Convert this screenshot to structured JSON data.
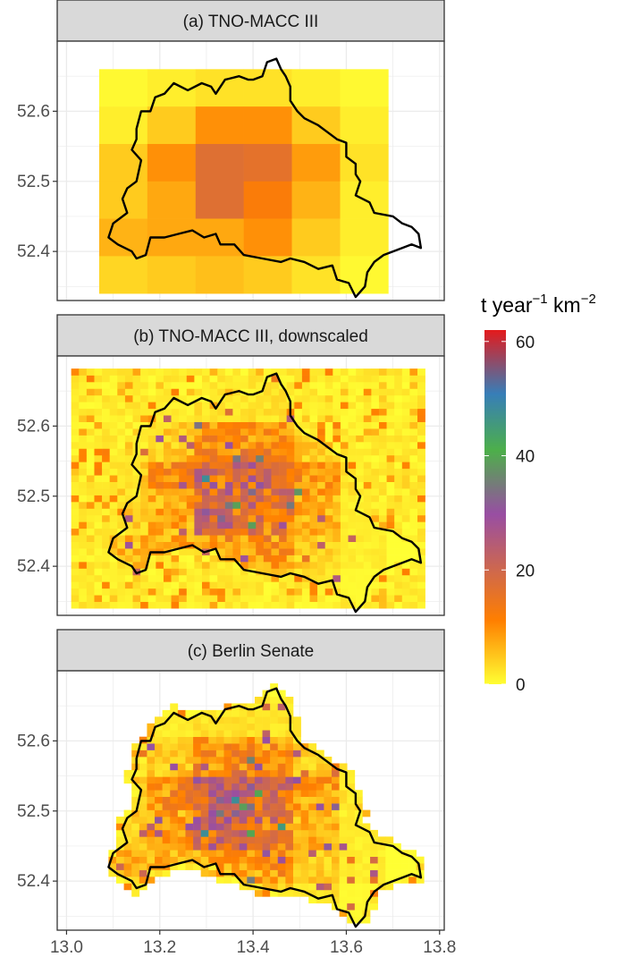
{
  "chart_data": {
    "type": "heatmap",
    "facets": [
      {
        "id": "a",
        "title": "(a) TNO-MACC III",
        "resolution": "coarse",
        "extent": {
          "lon": [
            13.07,
            13.69
          ],
          "lat": [
            52.34,
            52.66
          ]
        }
      },
      {
        "id": "b",
        "title": "(b) TNO-MACC III, downscaled",
        "resolution": "fine",
        "extent": {
          "lon": [
            13.01,
            13.76
          ],
          "lat": [
            52.34,
            52.675
          ]
        }
      },
      {
        "id": "c",
        "title": "(c) Berlin Senate",
        "resolution": "fine-clipped",
        "extent": {
          "lon": [
            13.09,
            13.76
          ],
          "lat": [
            52.34,
            52.68
          ]
        }
      }
    ],
    "x": {
      "ticks": [
        13.0,
        13.2,
        13.4,
        13.6,
        13.8
      ],
      "labels": [
        "13.0",
        "13.2",
        "13.4",
        "13.6",
        "13.8"
      ],
      "range": [
        12.98,
        13.81
      ]
    },
    "y": {
      "ticks": [
        52.4,
        52.5,
        52.6
      ],
      "labels": [
        "52.4",
        "52.5",
        "52.6"
      ],
      "range": [
        52.33,
        52.7
      ]
    },
    "coarse_grid": {
      "lon_edges": [
        13.07,
        13.1733,
        13.2767,
        13.38,
        13.4833,
        13.5867,
        13.69
      ],
      "lat_edges": [
        52.34,
        52.3933,
        52.4467,
        52.5,
        52.5533,
        52.6067,
        52.66
      ],
      "values_top_to_bottom": [
        [
          0.5,
          1.5,
          2.5,
          2.5,
          1.5,
          0.5
        ],
        [
          1.5,
          4.5,
          9.5,
          9.5,
          4.5,
          1.5
        ],
        [
          4.5,
          9.5,
          17,
          16,
          8.5,
          2.5
        ],
        [
          4.5,
          7.5,
          17,
          12,
          6.5,
          1.5
        ],
        [
          6.5,
          7.5,
          7.5,
          9.5,
          4.5,
          1.5
        ],
        [
          3.5,
          4.5,
          5.5,
          4.5,
          2.5,
          0.5
        ]
      ]
    },
    "legend": {
      "title": "t year",
      "title_sup1": "−1",
      "title_unit": " km",
      "title_sup2": "−2",
      "ticks": [
        0,
        20,
        40,
        60
      ],
      "tick_labels": [
        "0",
        "20",
        "40",
        "60"
      ],
      "limits": [
        0,
        62
      ]
    },
    "colors": {
      "strip_fill": "#d9d9d9",
      "grid": "#ebebeb",
      "scale": [
        "#ffff33",
        "#ff7f00",
        "#984ea3",
        "#4daf4a",
        "#377eb8",
        "#e41a1c"
      ]
    },
    "boundary_lonlat": [
      [
        13.15,
        52.39
      ],
      [
        13.17,
        52.395
      ],
      [
        13.18,
        52.42
      ],
      [
        13.21,
        52.42
      ],
      [
        13.24,
        52.425
      ],
      [
        13.27,
        52.43
      ],
      [
        13.295,
        52.42
      ],
      [
        13.32,
        52.425
      ],
      [
        13.33,
        52.41
      ],
      [
        13.36,
        52.41
      ],
      [
        13.38,
        52.395
      ],
      [
        13.42,
        52.39
      ],
      [
        13.46,
        52.385
      ],
      [
        13.48,
        52.39
      ],
      [
        13.51,
        52.385
      ],
      [
        13.54,
        52.375
      ],
      [
        13.57,
        52.38
      ],
      [
        13.58,
        52.36
      ],
      [
        13.605,
        52.355
      ],
      [
        13.62,
        52.335
      ],
      [
        13.64,
        52.35
      ],
      [
        13.645,
        52.37
      ],
      [
        13.66,
        52.385
      ],
      [
        13.68,
        52.395
      ],
      [
        13.72,
        52.405
      ],
      [
        13.74,
        52.41
      ],
      [
        13.76,
        52.405
      ],
      [
        13.755,
        52.425
      ],
      [
        13.74,
        52.435
      ],
      [
        13.72,
        52.44
      ],
      [
        13.7,
        52.45
      ],
      [
        13.66,
        52.455
      ],
      [
        13.65,
        52.47
      ],
      [
        13.62,
        52.48
      ],
      [
        13.63,
        52.5
      ],
      [
        13.62,
        52.51
      ],
      [
        13.62,
        52.525
      ],
      [
        13.6,
        52.535
      ],
      [
        13.6,
        52.555
      ],
      [
        13.58,
        52.56
      ],
      [
        13.56,
        52.57
      ],
      [
        13.54,
        52.58
      ],
      [
        13.51,
        52.59
      ],
      [
        13.495,
        52.6
      ],
      [
        13.48,
        52.615
      ],
      [
        13.48,
        52.635
      ],
      [
        13.47,
        52.65
      ],
      [
        13.46,
        52.66
      ],
      [
        13.45,
        52.675
      ],
      [
        13.43,
        52.67
      ],
      [
        13.42,
        52.65
      ],
      [
        13.4,
        52.645
      ],
      [
        13.39,
        52.645
      ],
      [
        13.37,
        52.65
      ],
      [
        13.34,
        52.645
      ],
      [
        13.32,
        52.625
      ],
      [
        13.31,
        52.635
      ],
      [
        13.29,
        52.64
      ],
      [
        13.26,
        52.63
      ],
      [
        13.23,
        52.64
      ],
      [
        13.21,
        52.625
      ],
      [
        13.19,
        52.62
      ],
      [
        13.18,
        52.6
      ],
      [
        13.16,
        52.6
      ],
      [
        13.15,
        52.575
      ],
      [
        13.15,
        52.56
      ],
      [
        13.14,
        52.545
      ],
      [
        13.16,
        52.53
      ],
      [
        13.15,
        52.5
      ],
      [
        13.13,
        52.49
      ],
      [
        13.12,
        52.475
      ],
      [
        13.13,
        52.455
      ],
      [
        13.1,
        52.44
      ],
      [
        13.09,
        52.42
      ],
      [
        13.11,
        52.41
      ],
      [
        13.14,
        52.4
      ],
      [
        13.15,
        52.39
      ]
    ]
  }
}
